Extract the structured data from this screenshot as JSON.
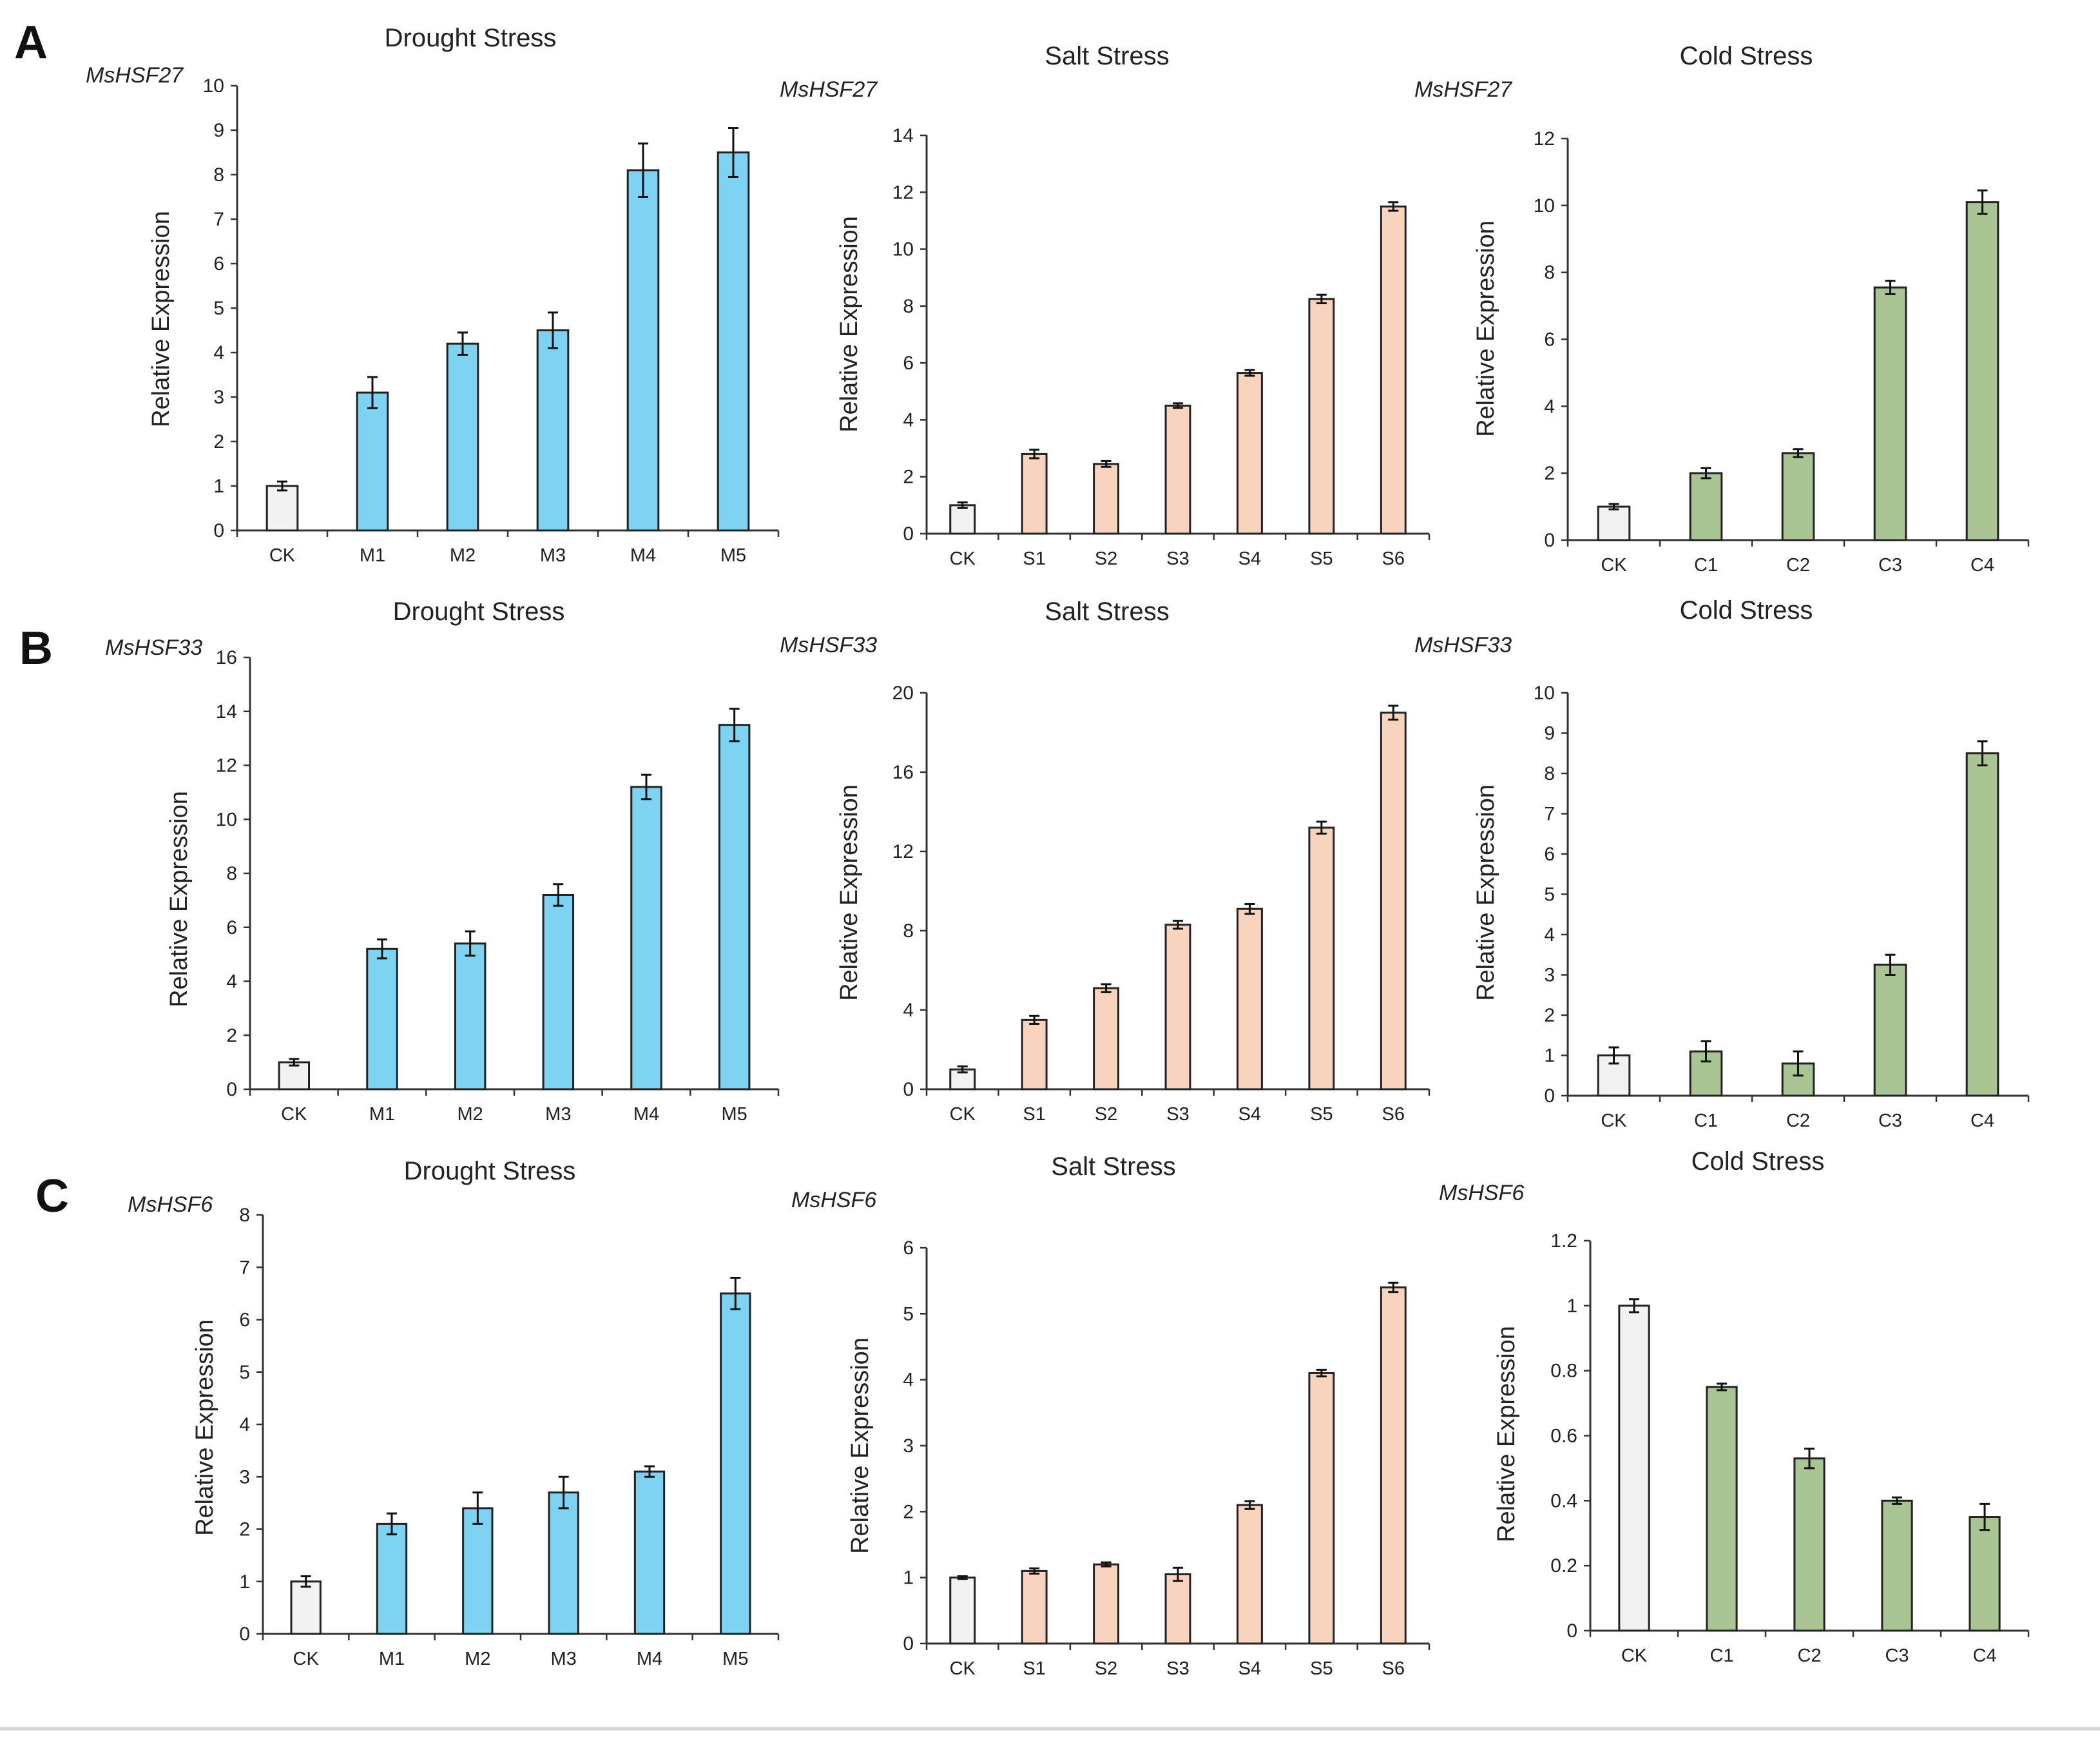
{
  "colors": {
    "control": "#f2f2f2",
    "drought": "#7fd3f2",
    "salt": "#f8d3bd",
    "cold": "#a9c594"
  },
  "panels": [
    {
      "letter": "A",
      "gene": "MsHSF27"
    },
    {
      "letter": "B",
      "gene": "MsHSF33"
    },
    {
      "letter": "C",
      "gene": "MsHSF6"
    }
  ],
  "chart_data": [
    {
      "panel": "A",
      "gene": "MsHSF27",
      "type": "bar",
      "title": "Drought Stress",
      "ylabel": "Relative Expression",
      "xlabel": "",
      "ylim": [
        0,
        10
      ],
      "yticks": [
        0,
        1,
        2,
        3,
        4,
        5,
        6,
        7,
        8,
        9,
        10
      ],
      "categories": [
        "CK",
        "M1",
        "M2",
        "M3",
        "M4",
        "M5"
      ],
      "values": [
        1.0,
        3.1,
        4.2,
        4.5,
        8.1,
        8.5
      ],
      "errors": [
        0.1,
        0.35,
        0.25,
        0.4,
        0.6,
        0.55
      ],
      "colors": [
        "control",
        "drought",
        "drought",
        "drought",
        "drought",
        "drought"
      ]
    },
    {
      "panel": "A",
      "gene": "MsHSF27",
      "type": "bar",
      "title": "Salt Stress",
      "ylabel": "Relative Expression",
      "xlabel": "",
      "ylim": [
        0,
        14
      ],
      "yticks": [
        0,
        2,
        4,
        6,
        8,
        10,
        12,
        14
      ],
      "categories": [
        "CK",
        "S1",
        "S2",
        "S3",
        "S4",
        "S5",
        "S6"
      ],
      "values": [
        1.0,
        2.8,
        2.45,
        4.5,
        5.65,
        8.25,
        11.5
      ],
      "errors": [
        0.1,
        0.15,
        0.1,
        0.08,
        0.1,
        0.15,
        0.15
      ],
      "colors": [
        "control",
        "salt",
        "salt",
        "salt",
        "salt",
        "salt",
        "salt"
      ]
    },
    {
      "panel": "A",
      "gene": "MsHSF27",
      "type": "bar",
      "title": "Cold Stress",
      "ylabel": "Relative Expression",
      "xlabel": "",
      "ylim": [
        0,
        12
      ],
      "yticks": [
        0,
        2,
        4,
        6,
        8,
        10,
        12
      ],
      "categories": [
        "CK",
        "C1",
        "C2",
        "C3",
        "C4"
      ],
      "values": [
        1.0,
        2.0,
        2.6,
        7.55,
        10.1
      ],
      "errors": [
        0.08,
        0.15,
        0.12,
        0.2,
        0.35
      ],
      "colors": [
        "control",
        "cold",
        "cold",
        "cold",
        "cold"
      ]
    },
    {
      "panel": "B",
      "gene": "MsHSF33",
      "type": "bar",
      "title": "Drought Stress",
      "ylabel": "Relative Expression",
      "xlabel": "",
      "ylim": [
        0,
        16
      ],
      "yticks": [
        0,
        2,
        4,
        6,
        8,
        10,
        12,
        14,
        16
      ],
      "categories": [
        "CK",
        "M1",
        "M2",
        "M3",
        "M4",
        "M5"
      ],
      "values": [
        1.0,
        5.2,
        5.4,
        7.2,
        11.2,
        13.5
      ],
      "errors": [
        0.12,
        0.35,
        0.45,
        0.4,
        0.45,
        0.6
      ],
      "colors": [
        "control",
        "drought",
        "drought",
        "drought",
        "drought",
        "drought"
      ]
    },
    {
      "panel": "B",
      "gene": "MsHSF33",
      "type": "bar",
      "title": "Salt Stress",
      "ylabel": "Relative Expression",
      "xlabel": "",
      "ylim": [
        0,
        20
      ],
      "yticks": [
        0,
        4,
        8,
        12,
        16,
        20
      ],
      "categories": [
        "CK",
        "S1",
        "S2",
        "S3",
        "S4",
        "S5",
        "S6"
      ],
      "values": [
        1.0,
        3.5,
        5.1,
        8.3,
        9.1,
        13.2,
        19.0
      ],
      "errors": [
        0.15,
        0.2,
        0.2,
        0.2,
        0.25,
        0.3,
        0.35
      ],
      "colors": [
        "control",
        "salt",
        "salt",
        "salt",
        "salt",
        "salt",
        "salt"
      ]
    },
    {
      "panel": "B",
      "gene": "MsHSF33",
      "type": "bar",
      "title": "Cold Stress",
      "ylabel": "Relative Expression",
      "xlabel": "",
      "ylim": [
        0,
        10
      ],
      "yticks": [
        0,
        1,
        2,
        3,
        4,
        5,
        6,
        7,
        8,
        9,
        10
      ],
      "categories": [
        "CK",
        "C1",
        "C2",
        "C3",
        "C4"
      ],
      "values": [
        1.0,
        1.1,
        0.8,
        3.25,
        8.5
      ],
      "errors": [
        0.2,
        0.25,
        0.3,
        0.25,
        0.3
      ],
      "colors": [
        "control",
        "cold",
        "cold",
        "cold",
        "cold"
      ]
    },
    {
      "panel": "C",
      "gene": "MsHSF6",
      "type": "bar",
      "title": "Drought Stress",
      "ylabel": "Relative Expression",
      "xlabel": "",
      "ylim": [
        0,
        8
      ],
      "yticks": [
        0,
        1,
        2,
        3,
        4,
        5,
        6,
        7,
        8
      ],
      "categories": [
        "CK",
        "M1",
        "M2",
        "M3",
        "M4",
        "M5"
      ],
      "values": [
        1.0,
        2.1,
        2.4,
        2.7,
        3.1,
        6.5
      ],
      "errors": [
        0.1,
        0.2,
        0.3,
        0.3,
        0.1,
        0.3
      ],
      "colors": [
        "control",
        "drought",
        "drought",
        "drought",
        "drought",
        "drought"
      ]
    },
    {
      "panel": "C",
      "gene": "MsHSF6",
      "type": "bar",
      "title": "Salt Stress",
      "ylabel": "Relative Expression",
      "xlabel": "",
      "ylim": [
        0,
        6
      ],
      "yticks": [
        0,
        1,
        2,
        3,
        4,
        5,
        6
      ],
      "categories": [
        "CK",
        "S1",
        "S2",
        "S3",
        "S4",
        "S5",
        "S6"
      ],
      "values": [
        1.0,
        1.1,
        1.2,
        1.05,
        2.1,
        4.1,
        5.4
      ],
      "errors": [
        0.02,
        0.04,
        0.03,
        0.1,
        0.06,
        0.05,
        0.07
      ],
      "colors": [
        "control",
        "salt",
        "salt",
        "salt",
        "salt",
        "salt",
        "salt"
      ]
    },
    {
      "panel": "C",
      "gene": "MsHSF6",
      "type": "bar",
      "title": "Cold Stress",
      "ylabel": "Relative Expression",
      "xlabel": "",
      "ylim": [
        0,
        1.2
      ],
      "yticks": [
        0,
        0.2,
        0.4,
        0.6,
        0.8,
        1,
        1.2
      ],
      "categories": [
        "CK",
        "C1",
        "C2",
        "C3",
        "C4"
      ],
      "values": [
        1.0,
        0.75,
        0.53,
        0.4,
        0.35
      ],
      "errors": [
        0.02,
        0.01,
        0.03,
        0.01,
        0.04
      ],
      "colors": [
        "control",
        "cold",
        "cold",
        "cold",
        "cold"
      ]
    }
  ]
}
